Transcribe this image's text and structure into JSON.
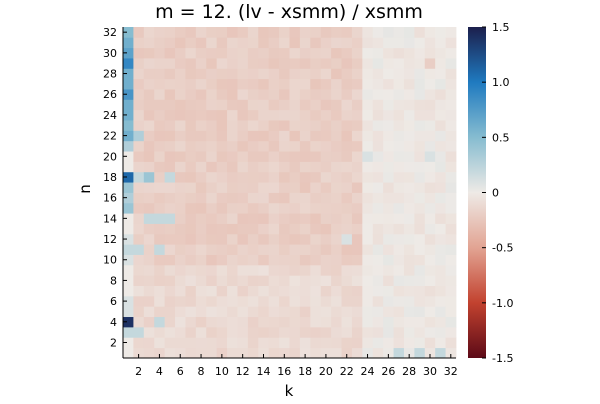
{
  "chart_data": {
    "type": "heatmap",
    "title": "m = 12. (lv - xsmm) / xsmm",
    "xlabel": "k",
    "ylabel": "n",
    "x_range": [
      1,
      32
    ],
    "y_range": [
      1,
      32
    ],
    "x_ticks": [
      2,
      4,
      6,
      8,
      10,
      12,
      14,
      16,
      18,
      20,
      22,
      24,
      26,
      28,
      30,
      32
    ],
    "y_ticks": [
      2,
      4,
      6,
      8,
      10,
      12,
      14,
      16,
      18,
      20,
      22,
      24,
      26,
      28,
      30,
      32
    ],
    "colorbar": {
      "range": [
        -1.5,
        1.5
      ],
      "ticks": [
        "-1.5",
        "-1.0",
        "-0.5",
        "0",
        "0.5",
        "1.0",
        "1.5"
      ],
      "colors": {
        "low": "#5c0a17",
        "low_mid": "#c2422f",
        "low_light": "#e2a493",
        "neutral": "#eeeae6",
        "high_light": "#86bcd0",
        "high_mid": "#1f7ac0",
        "high": "#1c1f4c"
      }
    },
    "grid": false,
    "legend": "colorbar-right",
    "first_column_values": {
      "n": [
        1,
        2,
        3,
        4,
        5,
        6,
        7,
        8,
        9,
        10,
        11,
        12,
        13,
        14,
        15,
        16,
        17,
        18,
        19,
        20,
        21,
        22,
        23,
        24,
        25,
        26,
        27,
        28,
        29,
        30,
        31,
        32
      ],
      "k1": [
        0.0,
        0.0,
        0.2,
        1.4,
        0.1,
        0.1,
        0.0,
        0.0,
        0.0,
        0.1,
        0.2,
        0.1,
        0.0,
        0.0,
        0.4,
        0.3,
        0.4,
        1.1,
        0.0,
        0.0,
        0.3,
        0.6,
        0.5,
        0.6,
        0.6,
        0.8,
        0.6,
        0.6,
        0.9,
        0.7,
        0.6,
        0.5
      ]
    },
    "notable_cells": [
      {
        "k": 2,
        "n": 22,
        "value": 0.3
      },
      {
        "k": 2,
        "n": 18,
        "value": 0.2
      },
      {
        "k": 3,
        "n": 18,
        "value": 0.4
      },
      {
        "k": 5,
        "n": 18,
        "value": 0.2
      },
      {
        "k": 3,
        "n": 14,
        "value": 0.2
      },
      {
        "k": 4,
        "n": 14,
        "value": 0.2
      },
      {
        "k": 5,
        "n": 14,
        "value": 0.2
      },
      {
        "k": 2,
        "n": 11,
        "value": 0.2
      },
      {
        "k": 4,
        "n": 11,
        "value": 0.2
      },
      {
        "k": 4,
        "n": 4,
        "value": 0.2
      },
      {
        "k": 2,
        "n": 3,
        "value": 0.2
      },
      {
        "k": 24,
        "n": 20,
        "value": 0.1
      },
      {
        "k": 27,
        "n": 1,
        "value": 0.2
      },
      {
        "k": 29,
        "n": 1,
        "value": 0.2
      },
      {
        "k": 31,
        "n": 1,
        "value": 0.2
      },
      {
        "k": 30,
        "n": 20,
        "value": 0.1
      },
      {
        "k": 30,
        "n": 29,
        "value": -0.2
      },
      {
        "k": 22,
        "n": 12,
        "value": 0.1
      }
    ],
    "region_values": [
      {
        "k_range": [
          2,
          23
        ],
        "n_range": [
          1,
          9
        ],
        "value": -0.12
      },
      {
        "k_range": [
          2,
          23
        ],
        "n_range": [
          10,
          32
        ],
        "value": -0.2
      },
      {
        "k_range": [
          24,
          32
        ],
        "n_range": [
          1,
          32
        ],
        "value": -0.02
      }
    ]
  }
}
